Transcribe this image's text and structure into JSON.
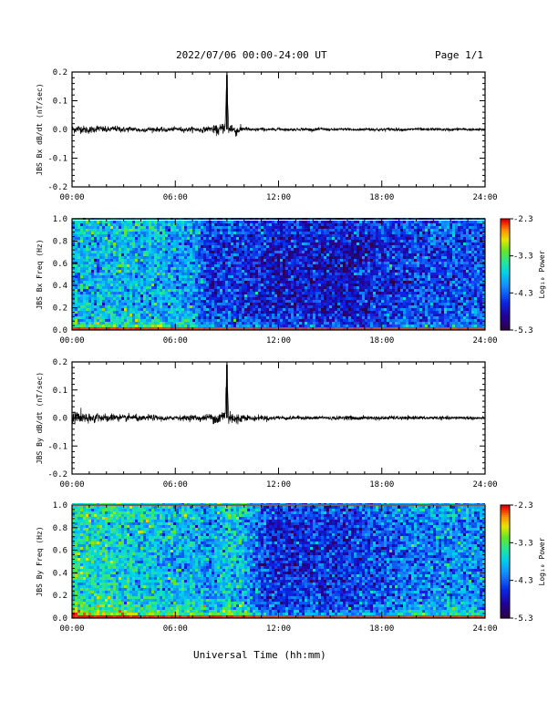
{
  "header": {
    "title": "2022/07/06  00:00-24:00 UT",
    "page": "Page 1/1"
  },
  "footer": {
    "xlabel": "Universal Time (hh:mm)"
  },
  "chart_data": [
    {
      "type": "line",
      "ylabel": "JBS Bx dB/dt (nT/sec)",
      "xlim": [
        0,
        24
      ],
      "ylim": [
        -0.2,
        0.2
      ],
      "yticks": [
        "-0.2",
        "-0.1",
        "0.0",
        "0.1",
        "0.2"
      ],
      "xticks": [
        "00:00",
        "06:00",
        "12:00",
        "18:00",
        "24:00"
      ],
      "color": "#000000",
      "series": [
        {
          "x": [
            0,
            0.5,
            1,
            1.5,
            2,
            2.5,
            3,
            3.5,
            4,
            4.5,
            5,
            5.5,
            6,
            6.5,
            7,
            7.5,
            8,
            8.5,
            8.9,
            9.0,
            9.1,
            9.2,
            9.5,
            10,
            10.5,
            11,
            11.5,
            12,
            12.5,
            13,
            13.5,
            14,
            14.5,
            15,
            15.5,
            16,
            16.5,
            17,
            17.5,
            18,
            18.5,
            19,
            19.5,
            20,
            20.5,
            21,
            21.5,
            22,
            22.5,
            23,
            23.5,
            24
          ],
          "y": [
            0,
            0.002,
            -0.003,
            0.004,
            -0.002,
            0.003,
            -0.001,
            0.002,
            -0.003,
            0.001,
            0,
            -0.002,
            0.002,
            -0.001,
            0.001,
            -0.002,
            0.003,
            -0.004,
            0.01,
            0.19,
            -0.01,
            0.008,
            -0.006,
            0.003,
            -0.002,
            0.001,
            -0.001,
            0.002,
            -0.001,
            0,
            0.001,
            -0.001,
            0.002,
            -0.001,
            0,
            0.001,
            -0.002,
            0.001,
            0,
            -0.001,
            0.001,
            0,
            -0.001,
            0.002,
            -0.001,
            0.001,
            0,
            -0.001,
            0.001,
            0,
            -0.001,
            0
          ],
          "noise_envelope": [
            [
              0,
              0.012
            ],
            [
              2,
              0.009
            ],
            [
              4,
              0.007
            ],
            [
              6,
              0.006
            ],
            [
              8,
              0.008
            ],
            [
              8.5,
              0.015
            ],
            [
              9,
              0.018
            ],
            [
              9.5,
              0.016
            ],
            [
              10,
              0.006
            ],
            [
              12,
              0.004
            ],
            [
              16,
              0.004
            ],
            [
              18,
              0.005
            ],
            [
              20,
              0.004
            ],
            [
              24,
              0.004
            ]
          ]
        }
      ]
    },
    {
      "type": "heatmap",
      "ylabel": "JBS Bx Freq (Hz)",
      "xlim": [
        0,
        24
      ],
      "ylim": [
        0.0,
        1.0
      ],
      "yticks": [
        "0.0",
        "0.2",
        "0.4",
        "0.6",
        "0.8",
        "1.0"
      ],
      "xticks": [
        "00:00",
        "06:00",
        "12:00",
        "18:00",
        "24:00"
      ],
      "colorbar": {
        "label": "Log₁₀ Power",
        "ticks": [
          "-2.3",
          "-3.3",
          "-4.3",
          "-5.3"
        ],
        "range": [
          -5.3,
          -2.3
        ]
      },
      "level_profile": {
        "time_hours": [
          0,
          3,
          6,
          7,
          8,
          9,
          10,
          12,
          14,
          16,
          18,
          20,
          22,
          24
        ],
        "log_power_mid": [
          -3.9,
          -3.9,
          -4.0,
          -4.0,
          -4.6,
          -4.5,
          -4.6,
          -4.7,
          -4.7,
          -4.8,
          -4.6,
          -4.5,
          -4.4,
          -4.4
        ],
        "low_freq_boost": [
          0.8,
          0.8,
          0.7,
          0.7,
          0.8,
          0.9,
          0.6,
          0.6,
          0.6,
          0.6,
          0.6,
          0.6,
          0.6,
          0.6
        ]
      }
    },
    {
      "type": "line",
      "ylabel": "JBS By dB/dt (nT/sec)",
      "xlim": [
        0,
        24
      ],
      "ylim": [
        -0.2,
        0.2
      ],
      "yticks": [
        "-0.2",
        "-0.1",
        "0.0",
        "0.1",
        "0.2"
      ],
      "xticks": [
        "00:00",
        "06:00",
        "12:00",
        "18:00",
        "24:00"
      ],
      "color": "#000000",
      "series": [
        {
          "x": [
            0,
            0.5,
            1,
            1.5,
            2,
            2.5,
            3,
            3.5,
            4,
            4.5,
            5,
            5.5,
            6,
            6.5,
            7,
            7.5,
            8,
            8.5,
            8.9,
            9.0,
            9.1,
            9.2,
            9.5,
            10,
            10.5,
            11,
            11.5,
            12,
            12.5,
            13,
            13.5,
            14,
            14.5,
            15,
            15.5,
            16,
            16.5,
            17,
            17.5,
            18,
            18.5,
            19,
            19.5,
            20,
            20.5,
            21,
            21.5,
            22,
            22.5,
            23,
            23.5,
            24
          ],
          "y": [
            0,
            0.004,
            -0.006,
            0.005,
            -0.003,
            0.004,
            -0.002,
            0.003,
            -0.004,
            0.002,
            0,
            -0.003,
            0.002,
            -0.001,
            0.002,
            -0.002,
            0.004,
            -0.005,
            0.012,
            0.19,
            -0.012,
            0.01,
            -0.008,
            0.004,
            -0.003,
            0.002,
            -0.002,
            0.002,
            -0.001,
            0.001,
            0.001,
            -0.001,
            0.002,
            -0.001,
            0,
            0.002,
            -0.002,
            0.001,
            0,
            -0.001,
            0.001,
            0,
            -0.001,
            0.002,
            -0.001,
            0.001,
            0,
            -0.001,
            0.001,
            0,
            -0.001,
            0
          ],
          "noise_envelope": [
            [
              0,
              0.02
            ],
            [
              1,
              0.016
            ],
            [
              2,
              0.012
            ],
            [
              4,
              0.009
            ],
            [
              6,
              0.007
            ],
            [
              8,
              0.01
            ],
            [
              8.5,
              0.02
            ],
            [
              9,
              0.022
            ],
            [
              9.5,
              0.02
            ],
            [
              10,
              0.009
            ],
            [
              12,
              0.006
            ],
            [
              14,
              0.005
            ],
            [
              16,
              0.006
            ],
            [
              18,
              0.006
            ],
            [
              20,
              0.005
            ],
            [
              24,
              0.005
            ]
          ]
        }
      ]
    },
    {
      "type": "heatmap",
      "ylabel": "JBS By Freq (Hz)",
      "xlim": [
        0,
        24
      ],
      "ylim": [
        0.0,
        1.0
      ],
      "yticks": [
        "0.0",
        "0.2",
        "0.4",
        "0.6",
        "0.8",
        "1.0"
      ],
      "xticks": [
        "00:00",
        "06:00",
        "12:00",
        "18:00",
        "24:00"
      ],
      "colorbar": {
        "label": "Log₁₀ Power",
        "ticks": [
          "-2.3",
          "-3.3",
          "-4.3",
          "-5.3"
        ],
        "range": [
          -5.3,
          -2.3
        ]
      },
      "level_profile": {
        "time_hours": [
          0,
          2,
          4,
          6,
          7,
          8,
          9,
          10,
          11,
          12,
          14,
          16,
          18,
          20,
          22,
          24
        ],
        "log_power_mid": [
          -3.6,
          -3.6,
          -3.8,
          -3.9,
          -3.9,
          -4.1,
          -3.8,
          -3.9,
          -4.4,
          -4.6,
          -4.6,
          -4.5,
          -4.4,
          -4.2,
          -4.1,
          -4.1
        ],
        "low_freq_boost": [
          1.0,
          1.0,
          0.9,
          0.8,
          0.8,
          0.9,
          1.0,
          0.9,
          0.7,
          0.7,
          0.7,
          0.7,
          0.7,
          0.7,
          0.7,
          0.7
        ]
      }
    }
  ]
}
